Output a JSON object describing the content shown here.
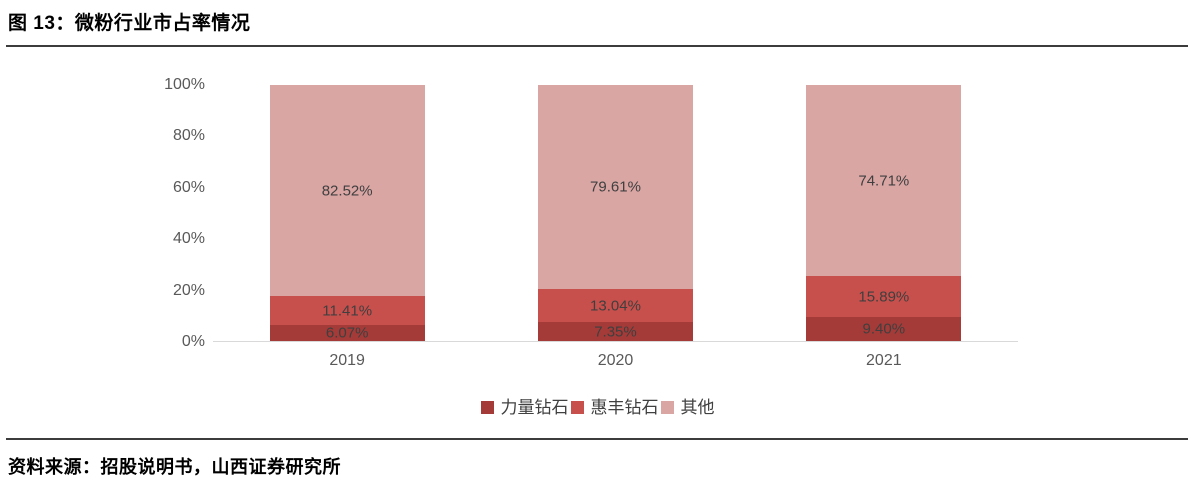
{
  "header": {
    "title": "图 13：微粉行业市占率情况"
  },
  "footer": {
    "source": "资料来源：招股说明书，山西证券研究所"
  },
  "colors": {
    "series_liliang": "#A43B38",
    "series_huifeng": "#C8504C",
    "series_other": "#D9A6A4",
    "value_label": "#3F3F3F",
    "axis_text": "#595959",
    "axis_line": "#D9D9D9",
    "rule": "#3C3C3C"
  },
  "chart_data": {
    "type": "bar",
    "stacked": true,
    "title": "微粉行业市占率情况",
    "xlabel": "",
    "ylabel": "",
    "categories": [
      "2019",
      "2020",
      "2021"
    ],
    "series": [
      {
        "name": "力量钻石",
        "color": "#A43B38",
        "values": [
          6.07,
          7.35,
          9.4
        ]
      },
      {
        "name": "惠丰钻石",
        "color": "#C8504C",
        "values": [
          11.41,
          13.04,
          15.89
        ]
      },
      {
        "name": "其他",
        "color": "#D9A6A4",
        "values": [
          82.52,
          79.61,
          74.71
        ]
      }
    ],
    "value_labels": [
      [
        "6.07%",
        "7.35%",
        "9.40%"
      ],
      [
        "11.41%",
        "13.04%",
        "15.89%"
      ],
      [
        "82.52%",
        "79.61%",
        "74.71%"
      ]
    ],
    "yticks": [
      "0%",
      "20%",
      "40%",
      "60%",
      "80%",
      "100%"
    ],
    "ylim": [
      0,
      100
    ],
    "grid": false,
    "legend_position": "bottom"
  }
}
